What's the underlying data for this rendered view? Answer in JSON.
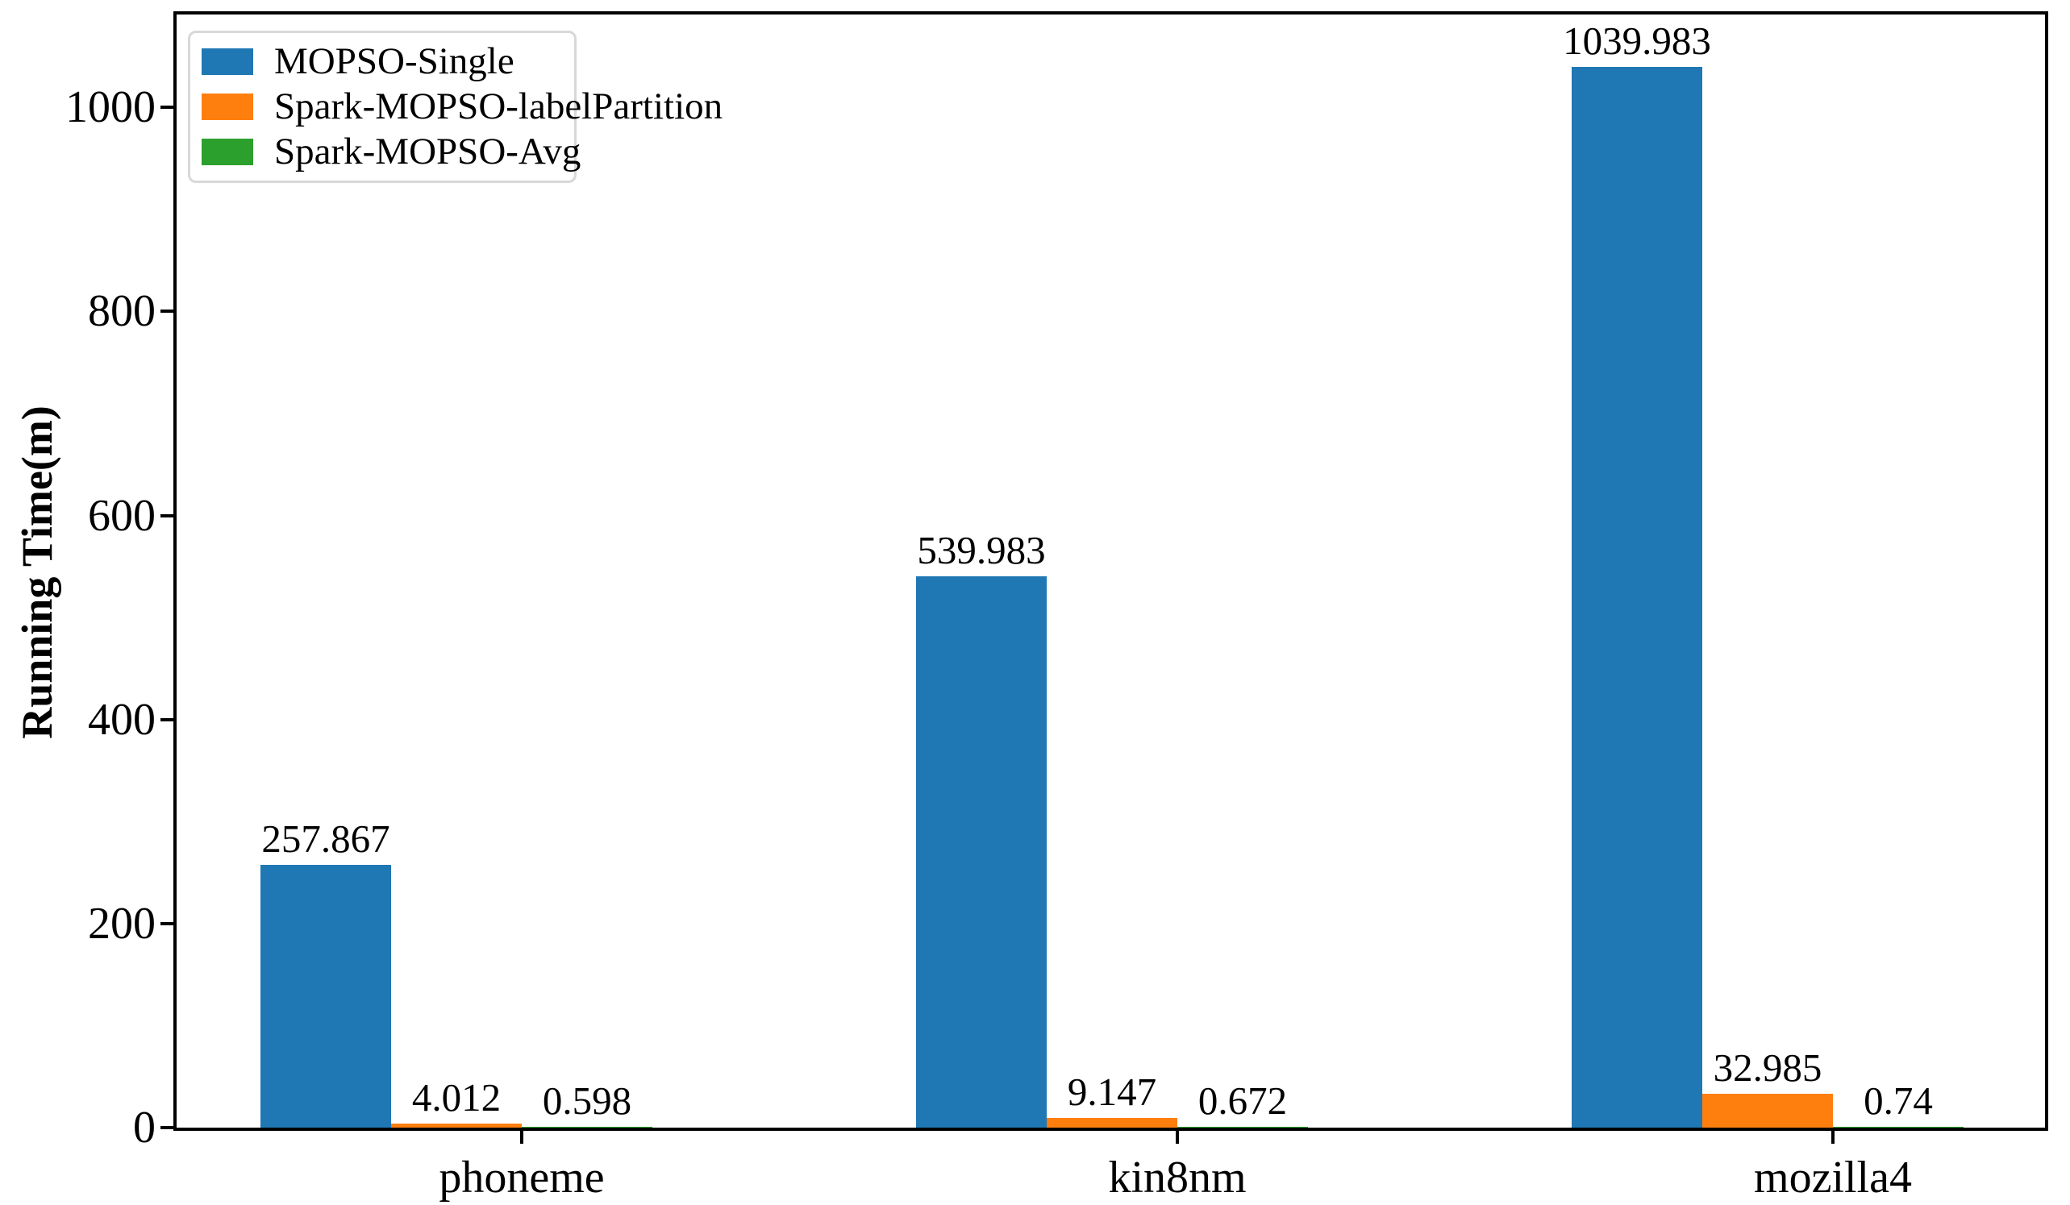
{
  "chart_data": {
    "type": "bar",
    "categories": [
      "phoneme",
      "kin8nm",
      "mozilla4"
    ],
    "series": [
      {
        "name": "MOPSO-Single",
        "color": "#1f77b4",
        "values": [
          257.867,
          539.983,
          1039.983
        ],
        "value_labels": [
          "257.867",
          "539.983",
          "1039.983"
        ]
      },
      {
        "name": "Spark-MOPSO-labelPartition",
        "color": "#ff7f0e",
        "values": [
          4.012,
          9.147,
          32.985
        ],
        "value_labels": [
          "4.012",
          "9.147",
          "32.985"
        ]
      },
      {
        "name": "Spark-MOPSO-Avg",
        "color": "#2ca02c",
        "values": [
          0.598,
          0.672,
          0.74
        ],
        "value_labels": [
          "0.598",
          "0.672",
          "0.74"
        ]
      }
    ],
    "title": "",
    "xlabel": "",
    "ylabel": "Running Time(m)",
    "yticks": [
      0,
      200,
      400,
      600,
      800,
      1000
    ],
    "ylim": [
      0,
      1091
    ],
    "grid": false,
    "legend_position": "upper-left",
    "axis_color": "#000000",
    "background_color": "#ffffff"
  }
}
